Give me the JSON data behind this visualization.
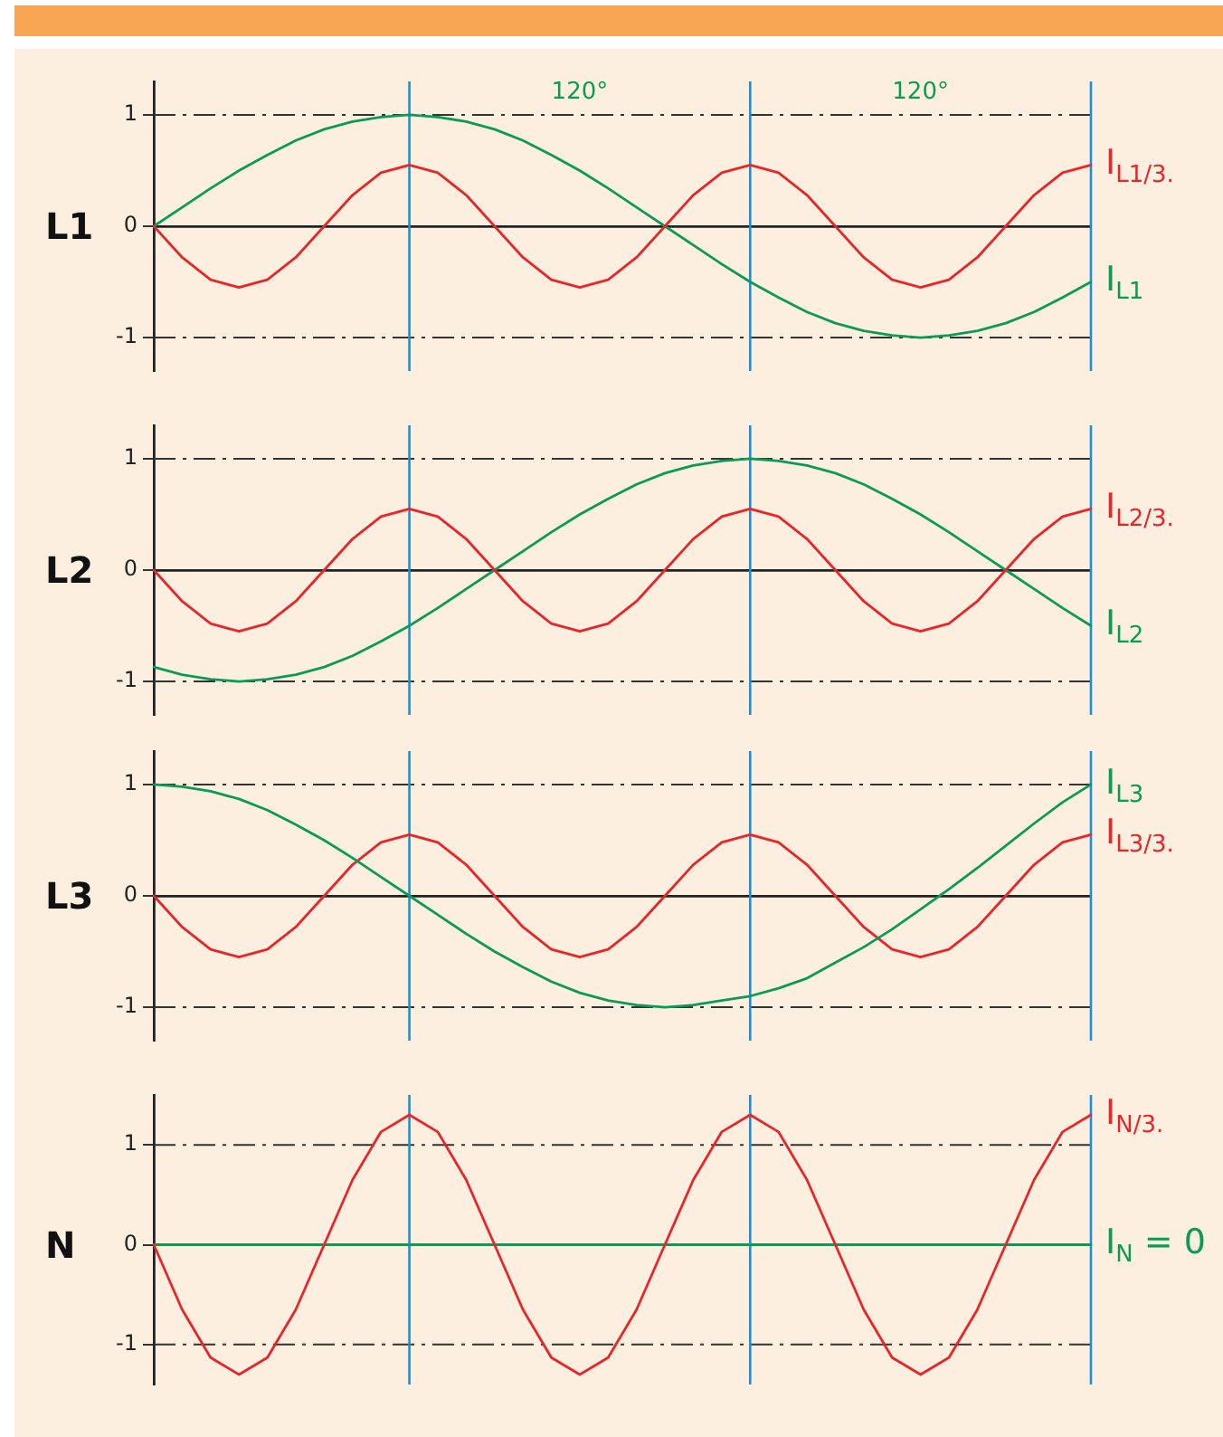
{
  "chart_data": [
    {
      "type": "line",
      "ylabel": "L1",
      "categories": [
        null,
        null,
        null,
        null,
        null,
        null,
        null,
        null,
        null,
        null,
        null,
        null,
        null,
        null,
        null,
        null,
        null,
        null,
        null,
        null,
        null,
        null,
        null,
        null,
        null,
        null,
        null,
        null,
        null,
        null,
        null,
        null,
        null,
        null
      ],
      "ylim": [
        -1.3,
        1.3
      ],
      "yticks": [
        -1,
        0,
        1
      ],
      "grid": "y",
      "tick_labels": "y",
      "marker": "none",
      "series": [
        {
          "name": "I$_{L1/3.}$",
          "color": "#e8262a",
          "values": [
            0,
            -0.28,
            -0.48,
            -0.55,
            -0.48,
            -0.28,
            0,
            0.28,
            0.48,
            0.55,
            0.48,
            0.28,
            0,
            -0.28,
            -0.48,
            -0.55,
            -0.48,
            -0.28,
            0,
            0.28,
            0.48,
            0.55,
            0.48,
            0.28,
            0,
            -0.28,
            -0.48,
            -0.55,
            -0.48,
            -0.28,
            0,
            0.28,
            0.48,
            0.55
          ]
        },
        {
          "name": "I$_{L1}$",
          "color": "#0a9a5a",
          "values": [
            0,
            0.17,
            0.34,
            0.5,
            0.64,
            0.77,
            0.87,
            0.94,
            0.98,
            1,
            0.98,
            0.94,
            0.87,
            0.77,
            0.64,
            0.5,
            0.34,
            0.17,
            0,
            -0.17,
            -0.34,
            -0.5,
            -0.64,
            -0.77,
            -0.87,
            -0.94,
            -0.98,
            -1,
            -0.98,
            -0.94,
            -0.87,
            -0.77,
            -0.64,
            -0.5
          ]
        }
      ],
      "annotations": [
        "120°",
        "120°"
      ]
    },
    {
      "type": "line",
      "ylabel": "L2",
      "categories": [
        null,
        null,
        null,
        null,
        null,
        null,
        null,
        null,
        null,
        null,
        null,
        null,
        null,
        null,
        null,
        null,
        null,
        null,
        null,
        null,
        null,
        null,
        null,
        null,
        null,
        null,
        null,
        null,
        null,
        null,
        null,
        null,
        null,
        null
      ],
      "ylim": [
        -1.3,
        1.3
      ],
      "yticks": [
        -1,
        0,
        1
      ],
      "grid": "y",
      "tick_labels": "y",
      "marker": "none",
      "series": [
        {
          "name": "I$_{L2/3.}$",
          "color": "#e8262a",
          "values": [
            0,
            -0.28,
            -0.48,
            -0.55,
            -0.48,
            -0.28,
            0,
            0.28,
            0.48,
            0.55,
            0.48,
            0.28,
            0,
            -0.28,
            -0.48,
            -0.55,
            -0.48,
            -0.28,
            0,
            0.28,
            0.48,
            0.55,
            0.48,
            0.28,
            0,
            -0.28,
            -0.48,
            -0.55,
            -0.48,
            -0.28,
            0,
            0.28,
            0.48,
            0.55
          ]
        },
        {
          "name": "I$_{L2}$",
          "color": "#0a9a5a",
          "values": [
            -0.87,
            -0.94,
            -0.98,
            -1,
            -0.98,
            -0.94,
            -0.87,
            -0.77,
            -0.64,
            -0.5,
            -0.34,
            -0.17,
            0,
            0.17,
            0.34,
            0.5,
            0.64,
            0.77,
            0.87,
            0.94,
            0.98,
            1,
            0.98,
            0.94,
            0.87,
            0.77,
            0.64,
            0.5,
            0.34,
            0.17,
            0,
            -0.17,
            -0.34,
            -0.5
          ]
        }
      ]
    },
    {
      "type": "line",
      "ylabel": "L3",
      "categories": [
        null,
        null,
        null,
        null,
        null,
        null,
        null,
        null,
        null,
        null,
        null,
        null,
        null,
        null,
        null,
        null,
        null,
        null,
        null,
        null,
        null,
        null,
        null,
        null,
        null,
        null,
        null,
        null,
        null,
        null,
        null,
        null,
        null,
        null
      ],
      "ylim": [
        -1.3,
        1.3
      ],
      "yticks": [
        -1,
        0,
        1
      ],
      "grid": "y",
      "tick_labels": "y",
      "marker": "none",
      "series": [
        {
          "name": "I$_{L3}$",
          "color": "#0a9a5a",
          "values": [
            1,
            0.98,
            0.94,
            0.87,
            0.77,
            0.64,
            0.5,
            0.34,
            0.17,
            0,
            -0.17,
            -0.34,
            -0.5,
            -0.64,
            -0.77,
            -0.87,
            -0.94,
            -0.98,
            -1,
            -0.98,
            -0.94,
            -0.9,
            -0.83,
            -0.74,
            -0.6,
            -0.46,
            -0.3,
            -0.12,
            0.06,
            0.25,
            0.45,
            0.65,
            0.84,
            1
          ]
        },
        {
          "name": "I$_{L3/3.}$",
          "color": "#e8262a",
          "values": [
            0,
            -0.28,
            -0.48,
            -0.55,
            -0.48,
            -0.28,
            0,
            0.28,
            0.48,
            0.55,
            0.48,
            0.28,
            0,
            -0.28,
            -0.48,
            -0.55,
            -0.48,
            -0.28,
            0,
            0.28,
            0.48,
            0.55,
            0.48,
            0.28,
            0,
            -0.28,
            -0.48,
            -0.55,
            -0.48,
            -0.28,
            0,
            0.28,
            0.48,
            0.55
          ]
        }
      ]
    },
    {
      "type": "line",
      "ylabel": "N",
      "categories": [
        null,
        null,
        null,
        null,
        null,
        null,
        null,
        null,
        null,
        null,
        null,
        null,
        null,
        null,
        null,
        null,
        null,
        null,
        null,
        null,
        null,
        null,
        null,
        null,
        null,
        null,
        null,
        null,
        null,
        null,
        null,
        null,
        null,
        null
      ],
      "ylim": [
        -1.4,
        1.5
      ],
      "yticks": [
        -1,
        0,
        1
      ],
      "grid": "y",
      "tick_labels": "y",
      "marker": "none",
      "series": [
        {
          "name": "I$_{N/3.}$",
          "color": "#e8262a",
          "values": [
            0,
            -0.65,
            -1.13,
            -1.3,
            -1.13,
            -0.65,
            0,
            0.65,
            1.13,
            1.3,
            1.13,
            0.65,
            0,
            -0.65,
            -1.13,
            -1.3,
            -1.13,
            -0.65,
            0,
            0.65,
            1.13,
            1.3,
            1.13,
            0.65,
            0,
            -0.65,
            -1.13,
            -1.3,
            -1.13,
            -0.65,
            0,
            0.65,
            1.13,
            1.3
          ]
        },
        {
          "name": "I$_{N}$ = 0",
          "color": "#0a9a5a",
          "values": [
            0,
            0,
            0,
            0,
            0,
            0,
            0,
            0,
            0,
            0,
            0,
            0,
            0,
            0,
            0,
            0,
            0,
            0,
            0,
            0,
            0,
            0,
            0,
            0,
            0,
            0,
            0,
            0,
            0,
            0,
            0,
            0,
            0,
            0
          ]
        }
      ]
    }
  ]
}
